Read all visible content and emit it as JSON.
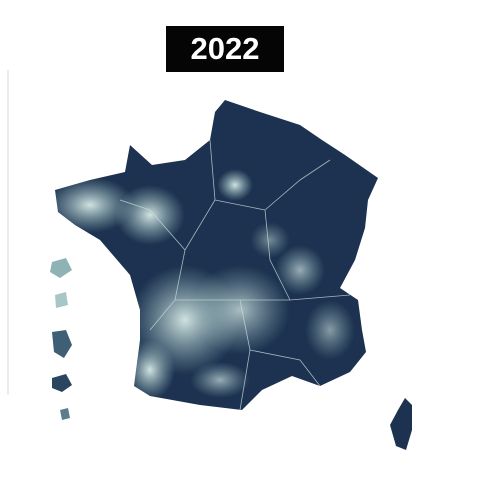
{
  "title": "2022"
}
